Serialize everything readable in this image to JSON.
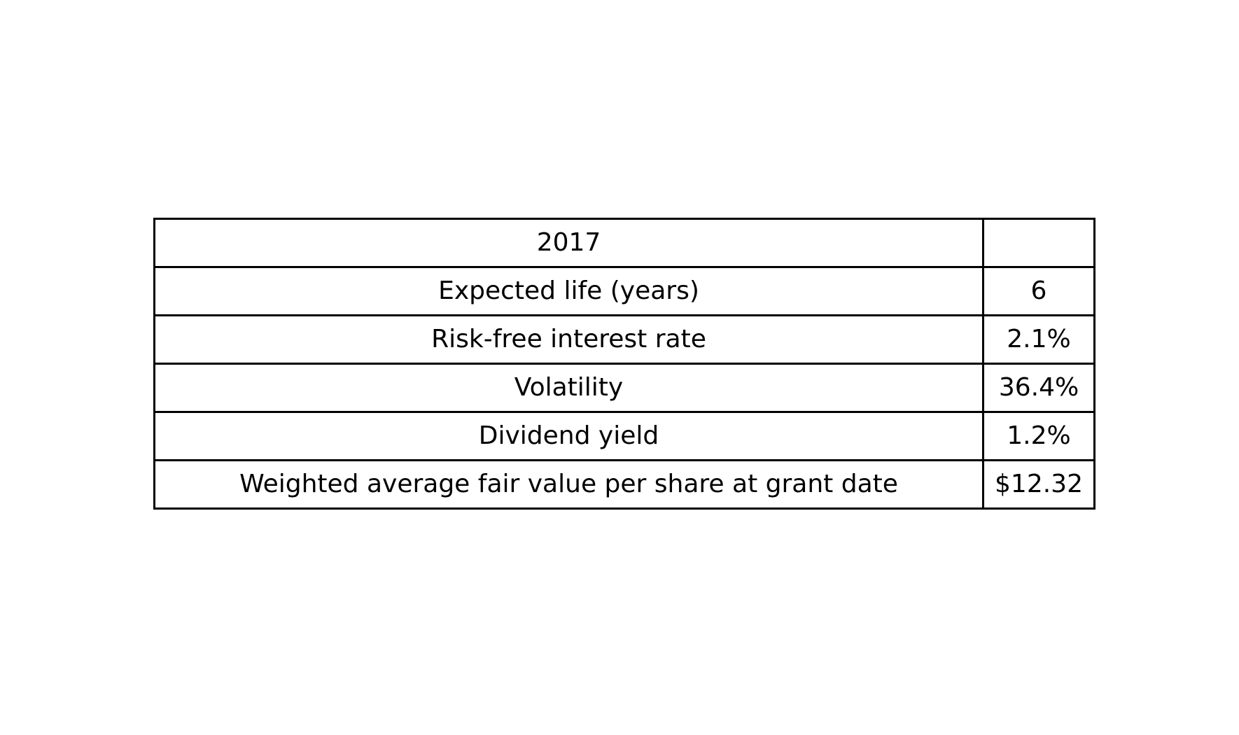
{
  "table": {
    "rows": [
      {
        "label": "2017",
        "value": ""
      },
      {
        "label": "Expected life (years)",
        "value": "6"
      },
      {
        "label": "Risk-free interest rate",
        "value": "2.1%"
      },
      {
        "label": "Volatility",
        "value": "36.4%"
      },
      {
        "label": "Dividend yield",
        "value": "1.2%"
      },
      {
        "label": "Weighted average fair value per share at grant date",
        "value": "$12.32"
      }
    ]
  }
}
